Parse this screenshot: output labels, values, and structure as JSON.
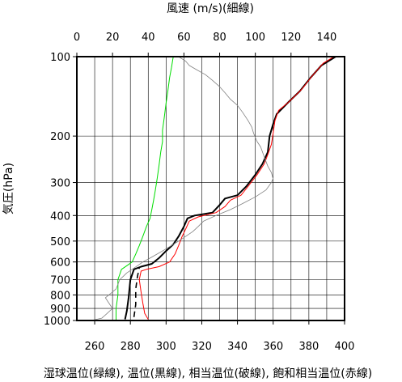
{
  "chart_data": {
    "type": "line",
    "title_top": "風速 (m/s)(細線)",
    "xlabel": "湿球温位(緑線), 温位(黒線), 相当温位(破線), 飽和相当温位(赤線)",
    "ylabel": "気圧(hPa)",
    "x_temp_range": [
      250,
      400
    ],
    "x_temp_ticks": [
      260,
      280,
      300,
      320,
      340,
      360,
      380,
      400
    ],
    "x_wind_range": [
      0,
      150
    ],
    "x_wind_ticks": [
      0,
      20,
      40,
      60,
      80,
      100,
      120,
      140
    ],
    "y_scale": "log",
    "y_range": [
      1000,
      100
    ],
    "y_ticks": [
      100,
      200,
      300,
      400,
      500,
      600,
      700,
      800,
      900,
      1000
    ],
    "grid": true,
    "series": [
      {
        "axis": "temperature",
        "color": "#00dd00",
        "width": 1,
        "dash": "",
        "points": [
          [
            272,
            1000
          ],
          [
            272,
            900
          ],
          [
            273,
            800
          ],
          [
            273,
            700
          ],
          [
            275,
            640
          ],
          [
            278,
            620
          ],
          [
            281,
            600
          ],
          [
            283,
            560
          ],
          [
            285,
            520
          ],
          [
            287,
            480
          ],
          [
            289,
            440
          ],
          [
            291,
            410
          ],
          [
            292,
            380
          ],
          [
            293,
            350
          ],
          [
            294,
            320
          ],
          [
            295,
            290
          ],
          [
            296,
            260
          ],
          [
            297,
            230
          ],
          [
            298,
            210
          ],
          [
            298,
            190
          ],
          [
            299,
            170
          ],
          [
            300,
            150
          ],
          [
            301,
            135
          ],
          [
            302,
            120
          ],
          [
            303,
            110
          ],
          [
            304,
            100
          ]
        ]
      },
      {
        "axis": "temperature",
        "color": "#000000",
        "width": 2,
        "dash": "",
        "points": [
          [
            277,
            990
          ],
          [
            278,
            920
          ],
          [
            279,
            820
          ],
          [
            280,
            700
          ],
          [
            282,
            640
          ],
          [
            286,
            625
          ],
          [
            292,
            610
          ],
          [
            296,
            580
          ],
          [
            300,
            545
          ],
          [
            304,
            515
          ],
          [
            307,
            480
          ],
          [
            310,
            440
          ],
          [
            312,
            410
          ],
          [
            316,
            400
          ],
          [
            326,
            390
          ],
          [
            330,
            365
          ],
          [
            333,
            345
          ],
          [
            340,
            335
          ],
          [
            345,
            310
          ],
          [
            350,
            280
          ],
          [
            354,
            255
          ],
          [
            357,
            230
          ],
          [
            358,
            200
          ],
          [
            360,
            180
          ],
          [
            362,
            165
          ],
          [
            368,
            150
          ],
          [
            375,
            135
          ],
          [
            381,
            120
          ],
          [
            387,
            108
          ],
          [
            395,
            100
          ]
        ]
      },
      {
        "axis": "temperature",
        "color": "#000000",
        "width": 1.6,
        "dash": "7,5",
        "points": [
          [
            282,
            970
          ],
          [
            283,
            870
          ],
          [
            283,
            760
          ],
          [
            284,
            680
          ],
          [
            285,
            630
          ]
        ]
      },
      {
        "axis": "temperature",
        "color": "#ff0000",
        "width": 1,
        "dash": "",
        "points": [
          [
            290,
            990
          ],
          [
            288,
            940
          ],
          [
            287,
            860
          ],
          [
            286,
            780
          ],
          [
            285,
            700
          ],
          [
            286,
            650
          ],
          [
            289,
            640
          ],
          [
            296,
            625
          ],
          [
            302,
            600
          ],
          [
            305,
            560
          ],
          [
            307,
            520
          ],
          [
            309,
            480
          ],
          [
            311,
            450
          ],
          [
            313,
            420
          ],
          [
            318,
            405
          ],
          [
            328,
            390
          ],
          [
            333,
            370
          ],
          [
            336,
            350
          ],
          [
            342,
            335
          ],
          [
            346,
            310
          ],
          [
            351,
            280
          ],
          [
            355,
            255
          ],
          [
            357,
            235
          ],
          [
            359,
            215
          ],
          [
            360,
            195
          ],
          [
            361,
            175
          ],
          [
            363,
            160
          ],
          [
            369,
            148
          ],
          [
            376,
            133
          ],
          [
            382,
            118
          ],
          [
            388,
            106
          ],
          [
            394,
            100
          ]
        ]
      },
      {
        "axis": "wind",
        "color": "#808080",
        "width": 0.8,
        "dash": "",
        "points": [
          [
            8,
            1000
          ],
          [
            14,
            980
          ],
          [
            17,
            940
          ],
          [
            20,
            900
          ],
          [
            18,
            860
          ],
          [
            16,
            820
          ],
          [
            19,
            790
          ],
          [
            22,
            760
          ],
          [
            23,
            730
          ],
          [
            24,
            700
          ],
          [
            26,
            680
          ],
          [
            28,
            660
          ],
          [
            31,
            640
          ],
          [
            34,
            620
          ],
          [
            37,
            600
          ],
          [
            41,
            580
          ],
          [
            45,
            560
          ],
          [
            49,
            540
          ],
          [
            53,
            520
          ],
          [
            57,
            500
          ],
          [
            61,
            480
          ],
          [
            65,
            460
          ],
          [
            68,
            440
          ],
          [
            71,
            420
          ],
          [
            78,
            400
          ],
          [
            86,
            380
          ],
          [
            93,
            360
          ],
          [
            100,
            340
          ],
          [
            106,
            320
          ],
          [
            109,
            300
          ],
          [
            110,
            290
          ],
          [
            109,
            275
          ],
          [
            107,
            260
          ],
          [
            105,
            240
          ],
          [
            103,
            220
          ],
          [
            101,
            210
          ],
          [
            99,
            195
          ],
          [
            98,
            185
          ],
          [
            96,
            175
          ],
          [
            93,
            163
          ],
          [
            90,
            153
          ],
          [
            86,
            145
          ],
          [
            83,
            137
          ],
          [
            80,
            130
          ],
          [
            76,
            123
          ],
          [
            72,
            117
          ],
          [
            67,
            112
          ],
          [
            63,
            108
          ],
          [
            61,
            104
          ],
          [
            57,
            100
          ]
        ]
      }
    ]
  }
}
